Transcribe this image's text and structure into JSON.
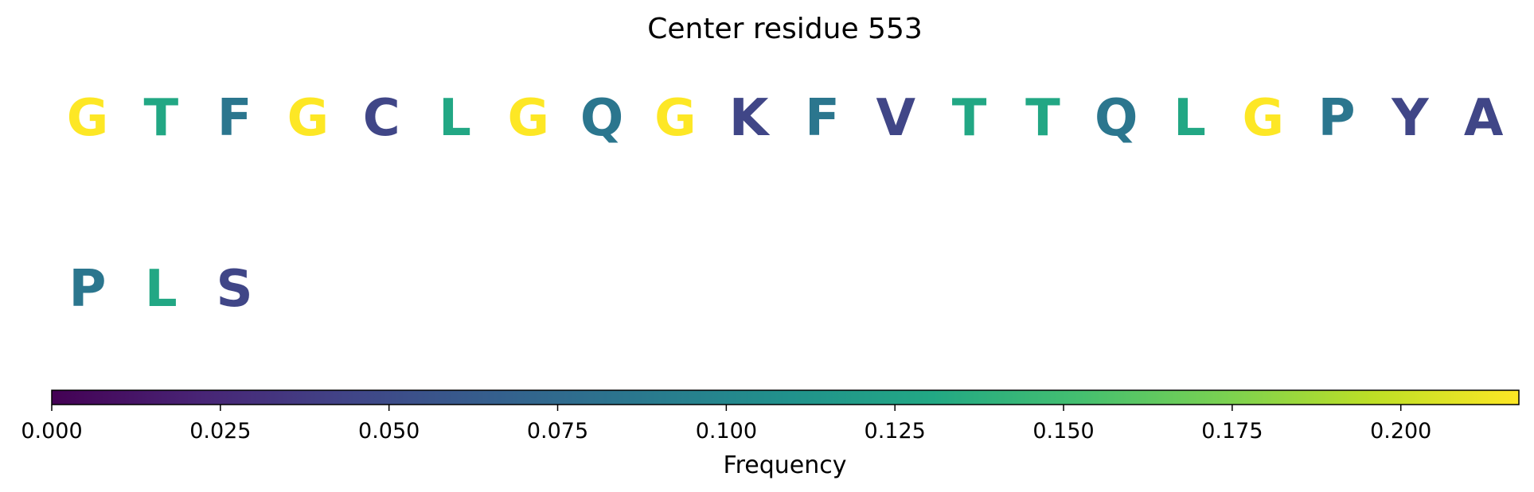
{
  "chart_data": {
    "type": "sequence-logo",
    "title": "Center residue 553",
    "rows": [
      {
        "residues": [
          {
            "letter": "G",
            "value": 0.22
          },
          {
            "letter": "T",
            "value": 0.13
          },
          {
            "letter": "F",
            "value": 0.085
          },
          {
            "letter": "G",
            "value": 0.22
          },
          {
            "letter": "C",
            "value": 0.045
          },
          {
            "letter": "L",
            "value": 0.13
          },
          {
            "letter": "G",
            "value": 0.22
          },
          {
            "letter": "Q",
            "value": 0.085
          },
          {
            "letter": "G",
            "value": 0.22
          },
          {
            "letter": "K",
            "value": 0.045
          },
          {
            "letter": "F",
            "value": 0.085
          },
          {
            "letter": "V",
            "value": 0.045
          },
          {
            "letter": "T",
            "value": 0.13
          },
          {
            "letter": "T",
            "value": 0.13
          },
          {
            "letter": "Q",
            "value": 0.085
          },
          {
            "letter": "L",
            "value": 0.13
          },
          {
            "letter": "G",
            "value": 0.22
          },
          {
            "letter": "P",
            "value": 0.085
          },
          {
            "letter": "Y",
            "value": 0.045
          },
          {
            "letter": "A",
            "value": 0.045
          }
        ]
      },
      {
        "residues": [
          {
            "letter": "P",
            "value": 0.085
          },
          {
            "letter": "L",
            "value": 0.13
          },
          {
            "letter": "S",
            "value": 0.045
          }
        ]
      }
    ],
    "colorbar": {
      "label": "Frequency",
      "colormap": "viridis",
      "range": [
        0,
        0.2175
      ],
      "ticks": [
        0.0,
        0.025,
        0.05,
        0.075,
        0.1,
        0.125,
        0.15,
        0.175,
        0.2
      ],
      "tick_labels": [
        "0.000",
        "0.025",
        "0.050",
        "0.075",
        "0.100",
        "0.125",
        "0.150",
        "0.175",
        "0.200"
      ]
    }
  }
}
